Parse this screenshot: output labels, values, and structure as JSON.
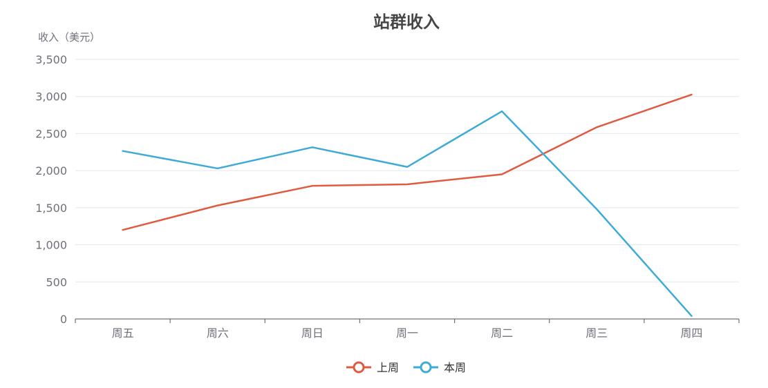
{
  "chart_data": {
    "type": "line",
    "title": "站群收入",
    "ylabel": "收入（美元）",
    "xlabel": "",
    "categories": [
      "周五",
      "周六",
      "周日",
      "周一",
      "周二",
      "周三",
      "周四"
    ],
    "ylim": [
      0,
      3500
    ],
    "yticks": [
      0,
      500,
      1000,
      1500,
      2000,
      2500,
      3000,
      3500
    ],
    "ytick_labels": [
      "0",
      "500",
      "1,000",
      "1,500",
      "2,000",
      "2,500",
      "3,000",
      "3,500"
    ],
    "grid": true,
    "legend_position": "bottom-center",
    "series": [
      {
        "name": "上周",
        "color": "#e05a3f",
        "values": [
          1200,
          1530,
          1795,
          1815,
          1950,
          2585,
          3025
        ]
      },
      {
        "name": "本周",
        "color": "#3eaad6",
        "values": [
          2265,
          2030,
          2315,
          2050,
          2800,
          1480,
          40
        ]
      }
    ]
  }
}
